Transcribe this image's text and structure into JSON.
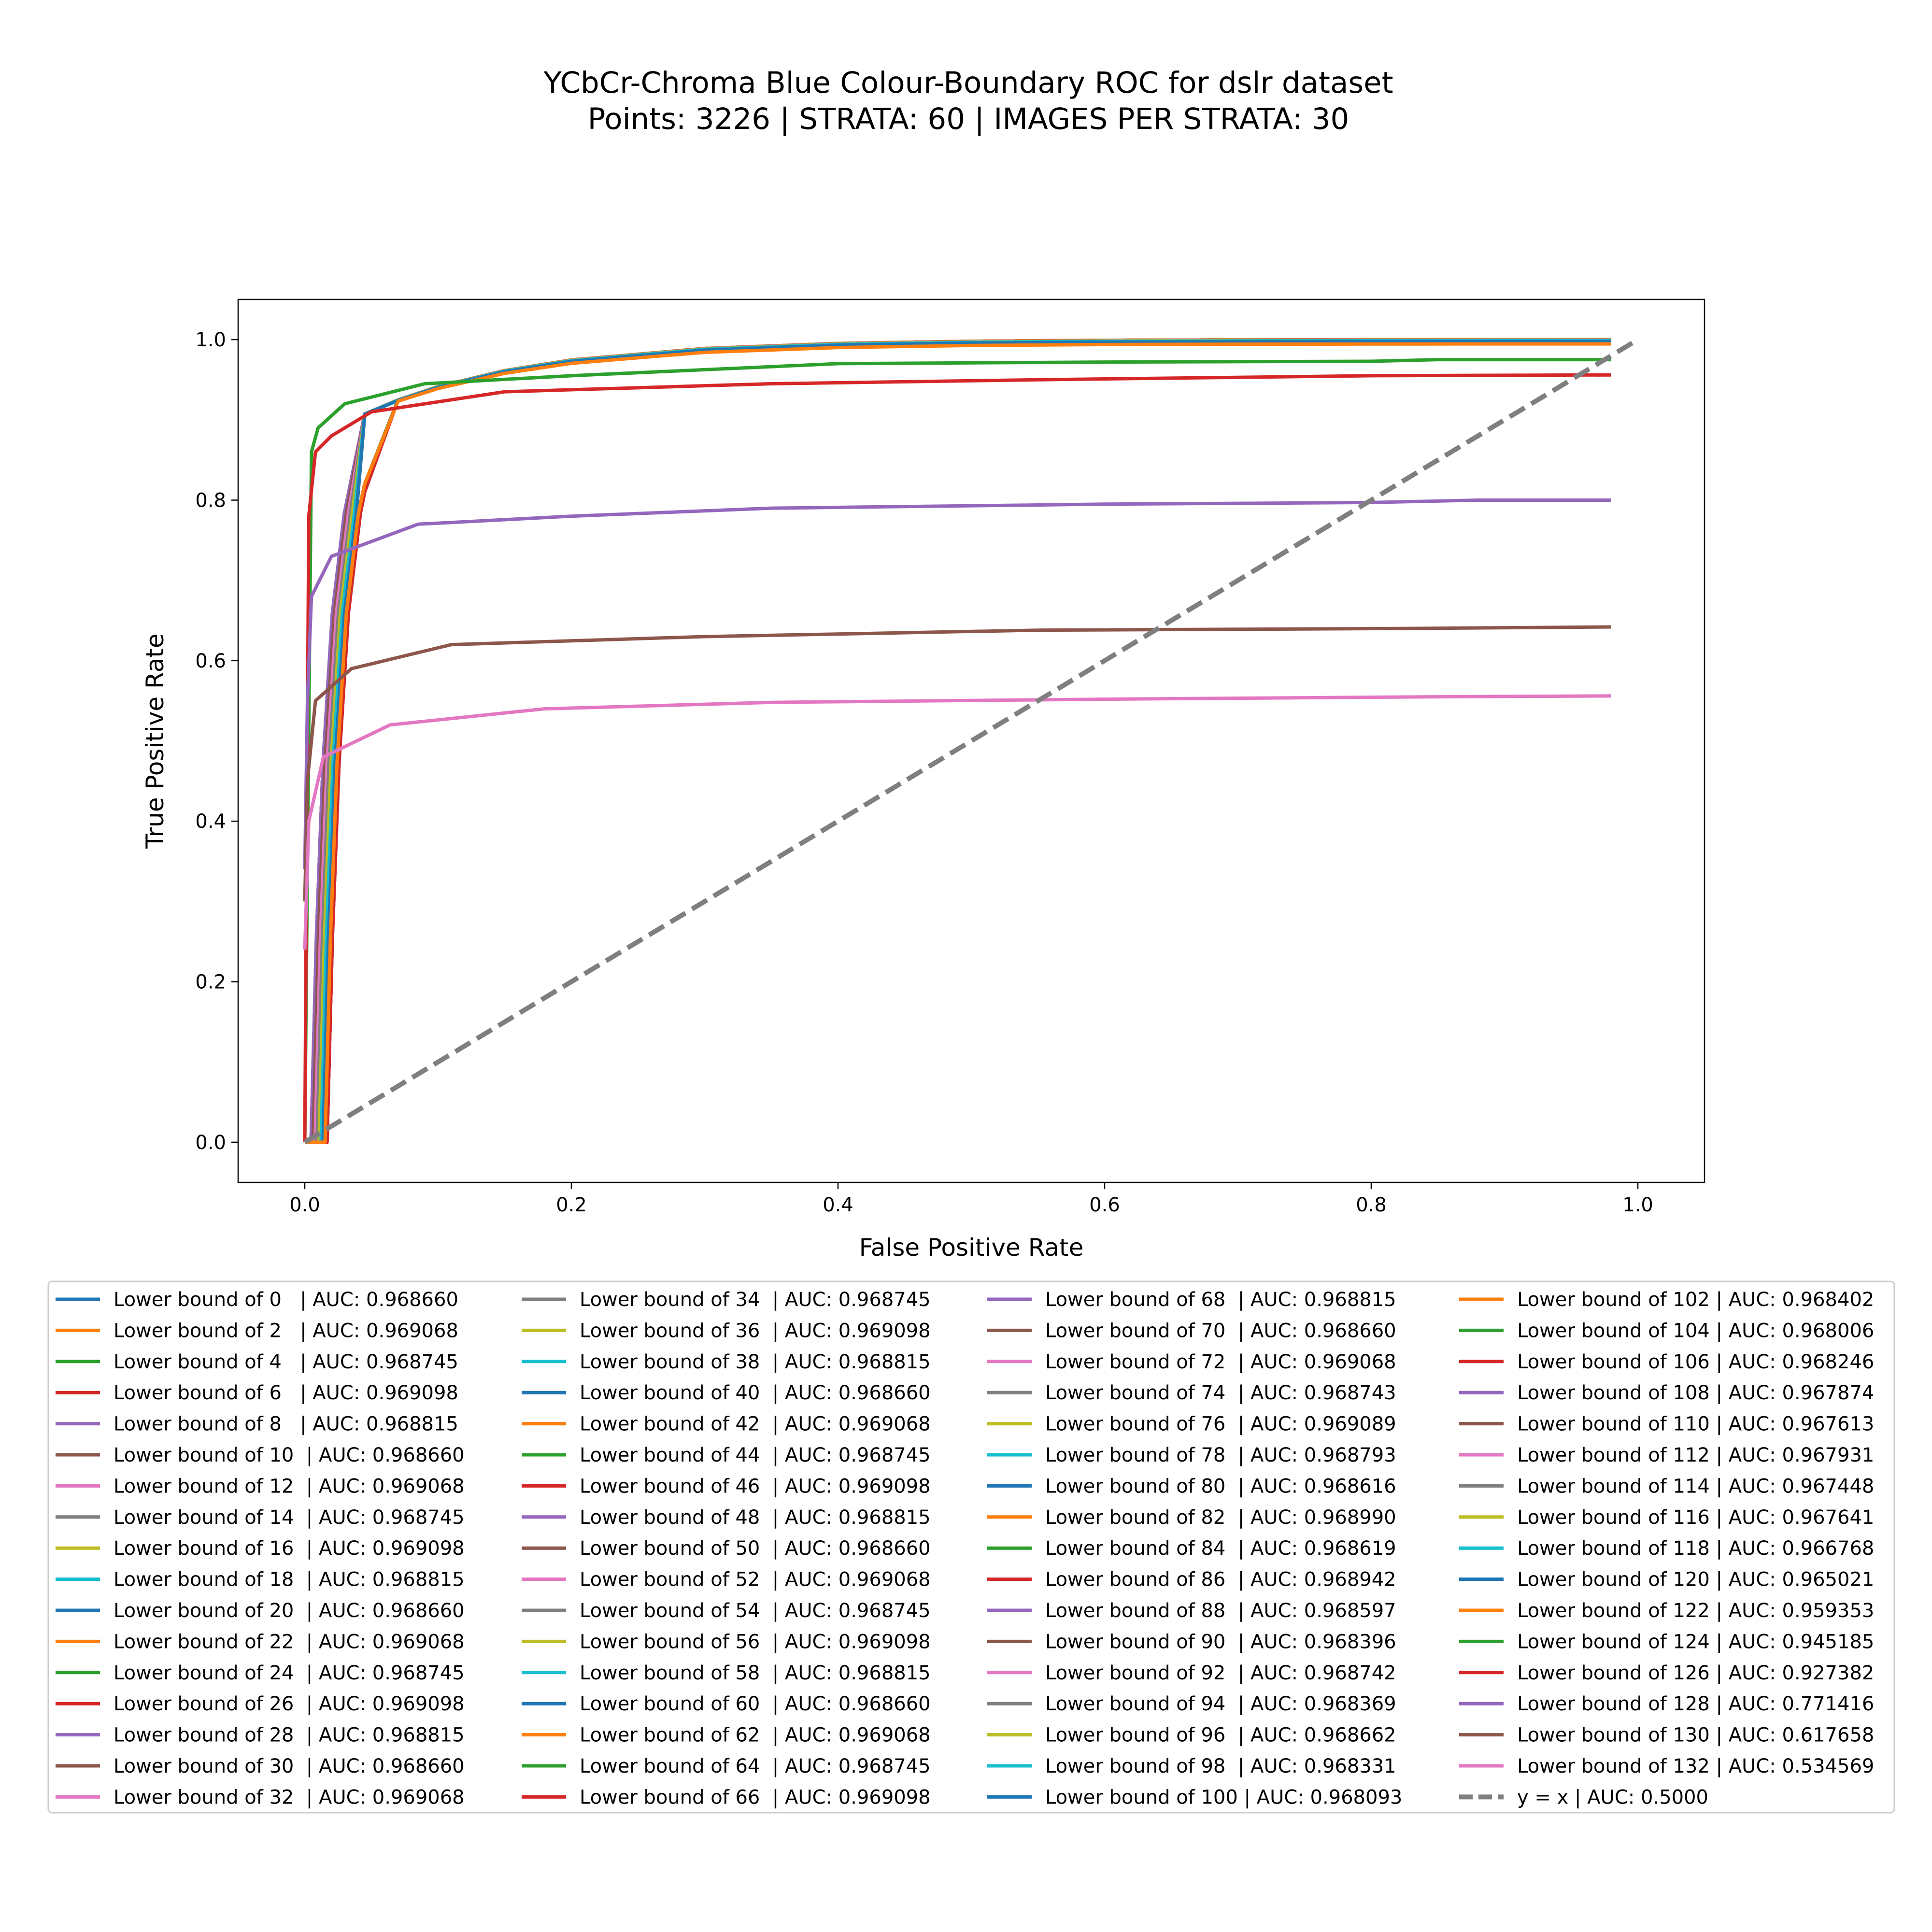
{
  "chart_data": {
    "type": "line",
    "title": "YCbCr-Chroma Blue Colour-Boundary ROC for dslr dataset",
    "subtitle": "Points: 3226 | STRATA: 60 | IMAGES PER STRATA: 30",
    "xlabel": "False Positive Rate",
    "ylabel": "True Positive Rate",
    "xlim": [
      -0.05,
      1.05
    ],
    "ylim": [
      -0.05,
      1.05
    ],
    "xticks": [
      0.0,
      0.2,
      0.4,
      0.6,
      0.8,
      1.0
    ],
    "yticks": [
      0.0,
      0.2,
      0.4,
      0.6,
      0.8,
      1.0
    ],
    "xtick_labels": [
      "0.0",
      "0.2",
      "0.4",
      "0.6",
      "0.8",
      "1.0"
    ],
    "ytick_labels": [
      "0.0",
      "0.2",
      "0.4",
      "0.6",
      "0.8",
      "1.0"
    ],
    "grid": false,
    "legend_position": "bottom",
    "palette": [
      "#1f77b4",
      "#ff7f0e",
      "#2ca02c",
      "#d62728",
      "#9467bd",
      "#8c564b",
      "#e377c2",
      "#7f7f7f",
      "#bcbd22",
      "#17becf"
    ],
    "series": [
      {
        "name": "Lower bound of 0   | AUC: 0.968660",
        "auc": 0.96866
      },
      {
        "name": "Lower bound of 2   | AUC: 0.969068",
        "auc": 0.969068
      },
      {
        "name": "Lower bound of 4   | AUC: 0.968745",
        "auc": 0.968745
      },
      {
        "name": "Lower bound of 6   | AUC: 0.969098",
        "auc": 0.969098
      },
      {
        "name": "Lower bound of 8   | AUC: 0.968815",
        "auc": 0.968815
      },
      {
        "name": "Lower bound of 10  | AUC: 0.968660",
        "auc": 0.96866
      },
      {
        "name": "Lower bound of 12  | AUC: 0.969068",
        "auc": 0.969068
      },
      {
        "name": "Lower bound of 14  | AUC: 0.968745",
        "auc": 0.968745
      },
      {
        "name": "Lower bound of 16  | AUC: 0.969098",
        "auc": 0.969098
      },
      {
        "name": "Lower bound of 18  | AUC: 0.968815",
        "auc": 0.968815
      },
      {
        "name": "Lower bound of 20  | AUC: 0.968660",
        "auc": 0.96866
      },
      {
        "name": "Lower bound of 22  | AUC: 0.969068",
        "auc": 0.969068
      },
      {
        "name": "Lower bound of 24  | AUC: 0.968745",
        "auc": 0.968745
      },
      {
        "name": "Lower bound of 26  | AUC: 0.969098",
        "auc": 0.969098
      },
      {
        "name": "Lower bound of 28  | AUC: 0.968815",
        "auc": 0.968815
      },
      {
        "name": "Lower bound of 30  | AUC: 0.968660",
        "auc": 0.96866
      },
      {
        "name": "Lower bound of 32  | AUC: 0.969068",
        "auc": 0.969068
      },
      {
        "name": "Lower bound of 34  | AUC: 0.968745",
        "auc": 0.968745
      },
      {
        "name": "Lower bound of 36  | AUC: 0.969098",
        "auc": 0.969098
      },
      {
        "name": "Lower bound of 38  | AUC: 0.968815",
        "auc": 0.968815
      },
      {
        "name": "Lower bound of 40  | AUC: 0.968660",
        "auc": 0.96866
      },
      {
        "name": "Lower bound of 42  | AUC: 0.969068",
        "auc": 0.969068
      },
      {
        "name": "Lower bound of 44  | AUC: 0.968745",
        "auc": 0.968745
      },
      {
        "name": "Lower bound of 46  | AUC: 0.969098",
        "auc": 0.969098
      },
      {
        "name": "Lower bound of 48  | AUC: 0.968815",
        "auc": 0.968815
      },
      {
        "name": "Lower bound of 50  | AUC: 0.968660",
        "auc": 0.96866
      },
      {
        "name": "Lower bound of 52  | AUC: 0.969068",
        "auc": 0.969068
      },
      {
        "name": "Lower bound of 54  | AUC: 0.968745",
        "auc": 0.968745
      },
      {
        "name": "Lower bound of 56  | AUC: 0.969098",
        "auc": 0.969098
      },
      {
        "name": "Lower bound of 58  | AUC: 0.968815",
        "auc": 0.968815
      },
      {
        "name": "Lower bound of 60  | AUC: 0.968660",
        "auc": 0.96866
      },
      {
        "name": "Lower bound of 62  | AUC: 0.969068",
        "auc": 0.969068
      },
      {
        "name": "Lower bound of 64  | AUC: 0.968745",
        "auc": 0.968745
      },
      {
        "name": "Lower bound of 66  | AUC: 0.969098",
        "auc": 0.969098
      },
      {
        "name": "Lower bound of 68  | AUC: 0.968815",
        "auc": 0.968815
      },
      {
        "name": "Lower bound of 70  | AUC: 0.968660",
        "auc": 0.96866
      },
      {
        "name": "Lower bound of 72  | AUC: 0.969068",
        "auc": 0.969068
      },
      {
        "name": "Lower bound of 74  | AUC: 0.968743",
        "auc": 0.968743
      },
      {
        "name": "Lower bound of 76  | AUC: 0.969089",
        "auc": 0.969089
      },
      {
        "name": "Lower bound of 78  | AUC: 0.968793",
        "auc": 0.968793
      },
      {
        "name": "Lower bound of 80  | AUC: 0.968616",
        "auc": 0.968616
      },
      {
        "name": "Lower bound of 82  | AUC: 0.968990",
        "auc": 0.96899
      },
      {
        "name": "Lower bound of 84  | AUC: 0.968619",
        "auc": 0.968619
      },
      {
        "name": "Lower bound of 86  | AUC: 0.968942",
        "auc": 0.968942
      },
      {
        "name": "Lower bound of 88  | AUC: 0.968597",
        "auc": 0.968597
      },
      {
        "name": "Lower bound of 90  | AUC: 0.968396",
        "auc": 0.968396
      },
      {
        "name": "Lower bound of 92  | AUC: 0.968742",
        "auc": 0.968742
      },
      {
        "name": "Lower bound of 94  | AUC: 0.968369",
        "auc": 0.968369
      },
      {
        "name": "Lower bound of 96  | AUC: 0.968662",
        "auc": 0.968662
      },
      {
        "name": "Lower bound of 98  | AUC: 0.968331",
        "auc": 0.968331
      },
      {
        "name": "Lower bound of 100 | AUC: 0.968093",
        "auc": 0.968093
      },
      {
        "name": "Lower bound of 102 | AUC: 0.968402",
        "auc": 0.968402
      },
      {
        "name": "Lower bound of 104 | AUC: 0.968006",
        "auc": 0.968006
      },
      {
        "name": "Lower bound of 106 | AUC: 0.968246",
        "auc": 0.968246
      },
      {
        "name": "Lower bound of 108 | AUC: 0.967874",
        "auc": 0.967874
      },
      {
        "name": "Lower bound of 110 | AUC: 0.967613",
        "auc": 0.967613
      },
      {
        "name": "Lower bound of 112 | AUC: 0.967931",
        "auc": 0.967931
      },
      {
        "name": "Lower bound of 114 | AUC: 0.967448",
        "auc": 0.967448
      },
      {
        "name": "Lower bound of 116 | AUC: 0.967641",
        "auc": 0.967641
      },
      {
        "name": "Lower bound of 118 | AUC: 0.966768",
        "auc": 0.966768
      },
      {
        "name": "Lower bound of 120 | AUC: 0.965021",
        "auc": 0.965021
      },
      {
        "name": "Lower bound of 122 | AUC: 0.959353",
        "auc": 0.959353
      },
      {
        "name": "Lower bound of 124 | AUC: 0.945185",
        "auc": 0.945185,
        "x": [
          0.0,
          0.005,
          0.01,
          0.03,
          0.09,
          0.2,
          0.4,
          0.6,
          0.8,
          0.85,
          0.98
        ],
        "y": [
          0.0,
          0.86,
          0.89,
          0.92,
          0.945,
          0.955,
          0.97,
          0.972,
          0.973,
          0.975,
          0.975
        ]
      },
      {
        "name": "Lower bound of 126 | AUC: 0.927382",
        "auc": 0.927382,
        "x": [
          0.0,
          0.003,
          0.008,
          0.02,
          0.05,
          0.15,
          0.35,
          0.55,
          0.8,
          0.98
        ],
        "y": [
          0.0,
          0.78,
          0.86,
          0.88,
          0.91,
          0.935,
          0.945,
          0.95,
          0.955,
          0.956
        ]
      },
      {
        "name": "Lower bound of 128 | AUC: 0.771416",
        "auc": 0.771416,
        "x": [
          0.0,
          0.002,
          0.005,
          0.02,
          0.085,
          0.2,
          0.35,
          0.6,
          0.8,
          0.88,
          0.98
        ],
        "y": [
          0.34,
          0.55,
          0.68,
          0.73,
          0.77,
          0.78,
          0.79,
          0.795,
          0.797,
          0.8,
          0.8
        ]
      },
      {
        "name": "Lower bound of 130 | AUC: 0.617658",
        "auc": 0.617658,
        "x": [
          0.0,
          0.002,
          0.008,
          0.035,
          0.11,
          0.3,
          0.55,
          0.82,
          0.98
        ],
        "y": [
          0.3,
          0.45,
          0.55,
          0.59,
          0.62,
          0.63,
          0.638,
          0.64,
          0.642
        ]
      },
      {
        "name": "Lower bound of 132 | AUC: 0.534569",
        "auc": 0.534569,
        "x": [
          0.0,
          0.003,
          0.014,
          0.064,
          0.18,
          0.35,
          0.6,
          0.85,
          0.98
        ],
        "y": [
          0.24,
          0.4,
          0.48,
          0.52,
          0.54,
          0.548,
          0.552,
          0.555,
          0.556
        ]
      },
      {
        "name": "y = x | AUC: 0.5000",
        "auc": 0.5,
        "dashed": true,
        "color": "#7f7f7f",
        "x": [
          0.0,
          1.0
        ],
        "y": [
          0.0,
          1.0
        ]
      }
    ]
  }
}
